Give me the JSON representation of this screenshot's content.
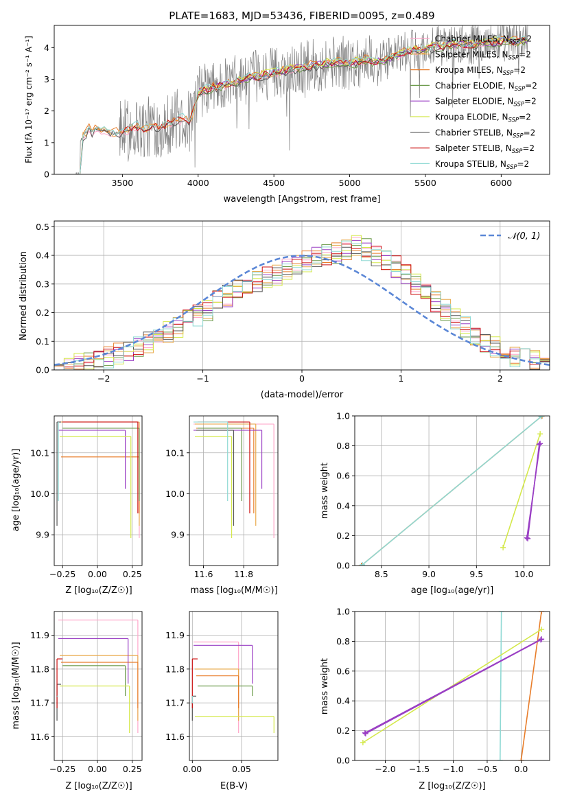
{
  "figure_title": "PLATE=1683, MJD=53436, FIBERID=0095, z=0.489",
  "models": [
    {
      "name": "Chabrier MILES",
      "color": "#ffa6c9"
    },
    {
      "name": "Salpeter MILES",
      "color": "#e8a94a"
    },
    {
      "name": "Kroupa MILES",
      "color": "#e87d2a"
    },
    {
      "name": "Chabrier ELODIE",
      "color": "#6b9a4a"
    },
    {
      "name": "Salpeter ELODIE",
      "color": "#9a3fc4"
    },
    {
      "name": "Kroupa ELODIE",
      "color": "#d4e84a"
    },
    {
      "name": "Chabrier STELIB",
      "color": "#555555"
    },
    {
      "name": "Salpeter STELIB",
      "color": "#cc1111"
    },
    {
      "name": "Kroupa STELIB",
      "color": "#8fd9d4"
    }
  ],
  "nssp_suffix": "=2",
  "chart_data": [
    {
      "id": "spectrum",
      "type": "line",
      "xlabel": "wavelength [Angstrom, rest frame]",
      "ylabel": "Flux [fλ 10⁻¹⁷ erg cm⁻² s⁻¹ A⁻¹]",
      "xlim": [
        3050,
        6320
      ],
      "ylim": [
        0,
        4.7
      ],
      "xticks": [
        3500,
        4000,
        4500,
        5000,
        5500,
        6000
      ],
      "yticks": [
        0,
        1,
        2,
        3,
        4
      ],
      "legend_position": "top-right",
      "observed_color": "#808080",
      "model_continuum": {
        "x": [
          3220,
          3240,
          3260,
          3280,
          3300,
          3330,
          3360,
          3400,
          3450,
          3500,
          3550,
          3600,
          3650,
          3700,
          3750,
          3800,
          3850,
          3900,
          3950,
          4000,
          4100,
          4200,
          4300,
          4400,
          4500,
          4600,
          4700,
          4800,
          4900,
          5000,
          5100,
          5200,
          5300,
          5400,
          5500,
          5600,
          5700,
          5800,
          5900,
          6000,
          6100,
          6175
        ],
        "y": [
          1.05,
          1.2,
          1.3,
          1.45,
          1.35,
          1.45,
          1.38,
          1.35,
          1.3,
          1.35,
          1.45,
          1.5,
          1.4,
          1.55,
          1.5,
          1.6,
          1.7,
          1.75,
          1.65,
          2.6,
          2.75,
          2.85,
          3.0,
          3.1,
          3.2,
          3.3,
          3.4,
          3.45,
          3.55,
          3.5,
          3.6,
          3.55,
          3.75,
          3.9,
          3.95,
          4.05,
          4.1,
          4.1,
          4.15,
          4.2,
          4.2,
          4.25
        ]
      }
    },
    {
      "id": "residuals",
      "type": "histogram",
      "xlabel": "(data-model)/error",
      "ylabel": "Normed distribution",
      "xlim": [
        -2.5,
        2.5
      ],
      "ylim": [
        0,
        0.52
      ],
      "xticks": [
        -2,
        -1,
        0,
        1,
        2
      ],
      "yticks": [
        0.0,
        0.1,
        0.2,
        0.3,
        0.4,
        0.5
      ],
      "grid": true,
      "reference_label": "𝒩(0, 1)",
      "reference_color": "#5b87d6",
      "bin_edges_range": [
        -2.5,
        2.5
      ],
      "bins": 50,
      "base_values": [
        0.01,
        0.015,
        0.02,
        0.03,
        0.035,
        0.045,
        0.055,
        0.065,
        0.08,
        0.1,
        0.11,
        0.13,
        0.15,
        0.17,
        0.19,
        0.21,
        0.24,
        0.26,
        0.28,
        0.3,
        0.31,
        0.32,
        0.33,
        0.35,
        0.37,
        0.38,
        0.39,
        0.4,
        0.41,
        0.42,
        0.43,
        0.42,
        0.4,
        0.38,
        0.36,
        0.34,
        0.3,
        0.27,
        0.24,
        0.21,
        0.18,
        0.15,
        0.12,
        0.1,
        0.08,
        0.06,
        0.05,
        0.04,
        0.03,
        0.03
      ]
    },
    {
      "id": "age-vs-Z",
      "type": "scatter",
      "xlabel": "Z [log₁₀(Z/Z☉)]",
      "ylabel": "age  [log₁₀(age/yr)]",
      "xlim": [
        -0.31,
        0.32
      ],
      "ylim": [
        9.825,
        10.19
      ],
      "xticks": [
        -0.25,
        0.0,
        0.25
      ],
      "yticks": [
        9.9,
        10.0,
        10.1
      ],
      "grid": true,
      "points": [
        {
          "model": 0,
          "x": 0.3,
          "y": 10.175
        },
        {
          "model": 1,
          "x": 0.3,
          "y": 10.175
        },
        {
          "model": 2,
          "x": 0.3,
          "y": 10.09
        },
        {
          "model": 3,
          "x": 0.3,
          "y": 10.16
        },
        {
          "model": 4,
          "x": 0.2,
          "y": 10.155
        },
        {
          "model": 5,
          "x": 0.24,
          "y": 10.14
        },
        {
          "model": 6,
          "x": -0.29,
          "y": 10.175
        },
        {
          "model": 7,
          "x": 0.29,
          "y": 10.175
        },
        {
          "model": 8,
          "x": -0.28,
          "y": 10.175
        }
      ]
    },
    {
      "id": "age-vs-mass",
      "type": "scatter",
      "xlabel": "mass [log₁₀(M/M☉)]",
      "ylabel": "",
      "xlim": [
        11.53,
        11.97
      ],
      "ylim": [
        9.825,
        10.19
      ],
      "xticks": [
        11.6,
        11.8
      ],
      "yticks": [
        9.9,
        10.0,
        10.1
      ],
      "grid": true,
      "points": [
        {
          "model": 0,
          "x": 11.95,
          "y": 10.17
        },
        {
          "model": 1,
          "x": 11.86,
          "y": 10.17
        },
        {
          "model": 2,
          "x": 11.85,
          "y": 10.16
        },
        {
          "model": 3,
          "x": 11.79,
          "y": 10.16
        },
        {
          "model": 4,
          "x": 11.89,
          "y": 10.155
        },
        {
          "model": 5,
          "x": 11.74,
          "y": 10.14
        },
        {
          "model": 6,
          "x": 11.75,
          "y": 10.155
        },
        {
          "model": 7,
          "x": 11.83,
          "y": 10.175
        },
        {
          "model": 8,
          "x": 11.72,
          "y": 10.175
        }
      ]
    },
    {
      "id": "massweight-vs-age",
      "type": "line",
      "xlabel": "age  [log₁₀(age/yr)]",
      "ylabel": "mass weight",
      "xlim": [
        8.22,
        10.27
      ],
      "ylim": [
        0.0,
        1.0
      ],
      "xticks": [
        8.5,
        9.0,
        9.5,
        10.0
      ],
      "yticks": [
        0.0,
        0.2,
        0.4,
        0.6,
        0.8,
        1.0
      ],
      "grid": true,
      "series": [
        {
          "model": 2,
          "x": [
            8.29,
            10.19
          ],
          "y": [
            0.0,
            1.0
          ]
        },
        {
          "model": 8,
          "x": [
            8.3,
            10.18
          ],
          "y": [
            0.005,
            0.995
          ]
        },
        {
          "model": 5,
          "x": [
            9.78,
            10.17
          ],
          "y": [
            0.12,
            0.88
          ]
        },
        {
          "model": 4,
          "x": [
            10.03,
            10.17
          ],
          "y": [
            0.185,
            0.815
          ]
        },
        {
          "model": 4,
          "x": [
            10.04,
            10.16
          ],
          "y": [
            0.18,
            0.81
          ]
        }
      ]
    },
    {
      "id": "mass-vs-Z",
      "type": "scatter",
      "xlabel": "Z [log₁₀(Z/Z☉)]",
      "ylabel": "mass [log₁₀(M/M☉)]",
      "xlim": [
        -0.31,
        0.32
      ],
      "ylim": [
        11.53,
        11.97
      ],
      "xticks": [
        -0.25,
        0.0,
        0.25
      ],
      "yticks": [
        11.6,
        11.7,
        11.8,
        11.9
      ],
      "grid": true,
      "points": [
        {
          "model": 0,
          "x": 0.29,
          "y": 11.945
        },
        {
          "model": 1,
          "x": 0.29,
          "y": 11.84
        },
        {
          "model": 2,
          "x": 0.29,
          "y": 11.82
        },
        {
          "model": 3,
          "x": 0.2,
          "y": 11.81
        },
        {
          "model": 4,
          "x": 0.22,
          "y": 11.89
        },
        {
          "model": 5,
          "x": 0.23,
          "y": 11.75
        },
        {
          "model": 6,
          "x": -0.29,
          "y": 11.755
        },
        {
          "model": 7,
          "x": -0.29,
          "y": 11.83
        },
        {
          "model": 8,
          "x": -0.29,
          "y": 11.72
        }
      ]
    },
    {
      "id": "mass-vs-ebv",
      "type": "scatter",
      "xlabel": "E(B-V)",
      "ylabel": "",
      "xlim": [
        -0.003,
        0.087
      ],
      "ylim": [
        11.53,
        11.97
      ],
      "xticks": [
        0.0,
        0.05
      ],
      "yticks": [
        11.6,
        11.7,
        11.8,
        11.9
      ],
      "grid": true,
      "points": [
        {
          "model": 0,
          "x": 0.047,
          "y": 11.88
        },
        {
          "model": 1,
          "x": 0.047,
          "y": 11.8
        },
        {
          "model": 2,
          "x": 0.047,
          "y": 11.78
        },
        {
          "model": 3,
          "x": 0.061,
          "y": 11.75
        },
        {
          "model": 4,
          "x": 0.061,
          "y": 11.87
        },
        {
          "model": 5,
          "x": 0.083,
          "y": 11.66
        },
        {
          "model": 6,
          "x": 0.0,
          "y": 11.72
        },
        {
          "model": 7,
          "x": 0.0,
          "y": 11.83
        },
        {
          "model": 8,
          "x": 0.0,
          "y": 11.7
        }
      ]
    },
    {
      "id": "massweight-vs-Z",
      "type": "line",
      "xlabel": "Z [log₁₀(Z/Z☉)]",
      "ylabel": "mass weight",
      "xlim": [
        -2.45,
        0.42
      ],
      "ylim": [
        0.0,
        1.0
      ],
      "xticks": [
        -2.0,
        -1.5,
        -1.0,
        -0.5,
        0.0
      ],
      "yticks": [
        0.0,
        0.2,
        0.4,
        0.6,
        0.8,
        1.0
      ],
      "grid": true,
      "series": [
        {
          "model": 8,
          "x": [
            -0.31,
            -0.29
          ],
          "y": [
            0.0,
            1.0
          ]
        },
        {
          "model": 2,
          "x": [
            0.0,
            0.3
          ],
          "y": [
            0.0,
            1.0
          ]
        },
        {
          "model": 5,
          "x": [
            -2.33,
            0.3
          ],
          "y": [
            0.12,
            0.88
          ]
        },
        {
          "model": 4,
          "x": [
            -2.3,
            0.3
          ],
          "y": [
            0.185,
            0.815
          ]
        },
        {
          "model": 4,
          "x": [
            -2.29,
            0.29
          ],
          "y": [
            0.18,
            0.81
          ]
        }
      ]
    }
  ]
}
